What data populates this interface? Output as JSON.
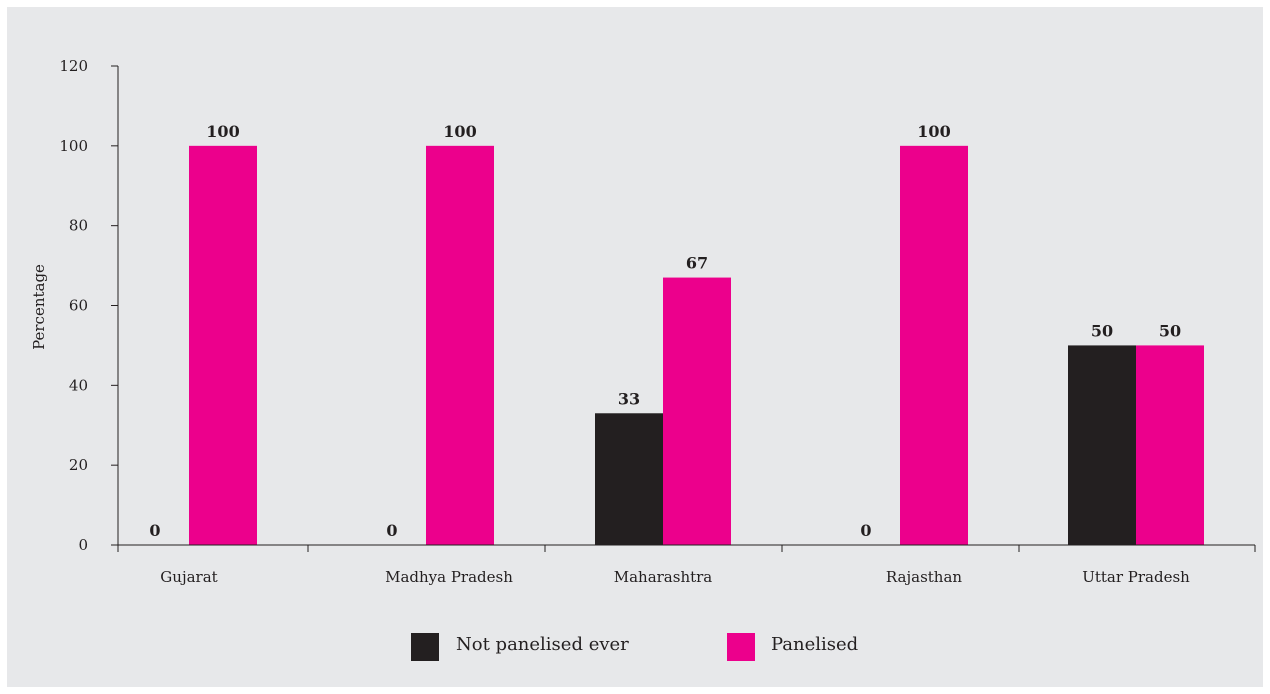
{
  "chart_data": {
    "type": "bar",
    "title": "",
    "xlabel": "",
    "ylabel": "Percentage",
    "ylim": [
      0,
      120
    ],
    "yticks": [
      0,
      20,
      40,
      60,
      80,
      100,
      120
    ],
    "grid": false,
    "legend_position": "bottom",
    "categories": [
      "Gujarat",
      "Madhya Pradesh",
      "Maharashtra",
      "Rajasthan",
      "Uttar Pradesh"
    ],
    "series": [
      {
        "name": "Not panelised ever",
        "color": "#231f20",
        "values": [
          0,
          0,
          33,
          0,
          50
        ]
      },
      {
        "name": "Panelised",
        "color": "#ec008c",
        "values": [
          100,
          100,
          67,
          100,
          50
        ]
      }
    ]
  }
}
